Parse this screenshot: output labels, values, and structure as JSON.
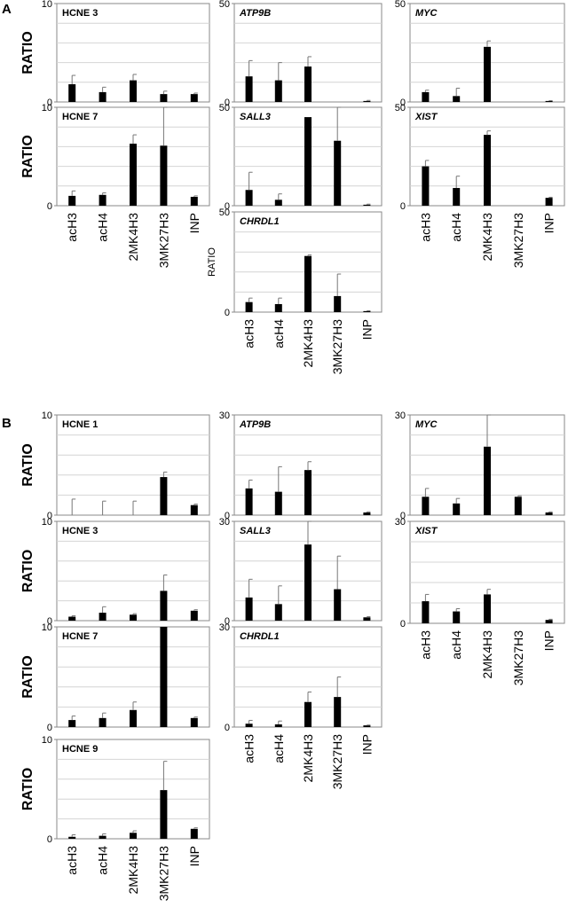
{
  "figure": {
    "panel_labels": [
      "A",
      "B"
    ],
    "y_axis_label": "RATIO",
    "category_labels": [
      "acH3",
      "acH4",
      "2MK4H3",
      "3MK27H3",
      "INP"
    ]
  },
  "chart_data": [
    {
      "id": "A-HCNE3",
      "type": "bar",
      "title": "HCNE 3",
      "title_italic": false,
      "ylabel": "RATIO",
      "ylim": [
        0,
        10
      ],
      "yticks": [
        0,
        10
      ],
      "categories": [
        "acH3",
        "acH4",
        "2MK4H3",
        "3MK27H3",
        "INP"
      ],
      "values": [
        1.8,
        1.0,
        2.2,
        0.8,
        0.8
      ],
      "errors": [
        0.9,
        0.5,
        0.6,
        0.3,
        0.1
      ],
      "grid": true
    },
    {
      "id": "A-ATP9B",
      "type": "bar",
      "title": "ATP9B",
      "title_italic": true,
      "ylabel": "",
      "ylim": [
        0,
        50
      ],
      "yticks": [
        0,
        50
      ],
      "categories": [
        "acH3",
        "acH4",
        "2MK4H3",
        "3MK27H3",
        "INP"
      ],
      "values": [
        13,
        11,
        18,
        0,
        0.5
      ],
      "errors": [
        8,
        9,
        5,
        0,
        0.3
      ],
      "grid": true
    },
    {
      "id": "A-MYC",
      "type": "bar",
      "title": "MYC",
      "title_italic": true,
      "ylabel": "",
      "ylim": [
        0,
        50
      ],
      "yticks": [
        0,
        50
      ],
      "categories": [
        "acH3",
        "acH4",
        "2MK4H3",
        "3MK27H3",
        "INP"
      ],
      "values": [
        5,
        3,
        28,
        0,
        0.5
      ],
      "errors": [
        1,
        4,
        3,
        0,
        0.2
      ],
      "grid": true
    },
    {
      "id": "A-HCNE7",
      "type": "bar",
      "title": "HCNE 7",
      "title_italic": false,
      "ylabel": "RATIO",
      "ylim": [
        0,
        10
      ],
      "yticks": [
        0,
        10
      ],
      "categories": [
        "acH3",
        "acH4",
        "2MK4H3",
        "3MK27H3",
        "INP"
      ],
      "values": [
        1.0,
        1.1,
        6.3,
        6.1,
        0.9
      ],
      "errors": [
        0.5,
        0.2,
        0.9,
        3.9,
        0.1
      ],
      "grid": true
    },
    {
      "id": "A-SALL3",
      "type": "bar",
      "title": "SALL3",
      "title_italic": true,
      "ylabel": "",
      "ylim": [
        0,
        50
      ],
      "yticks": [
        0,
        50
      ],
      "categories": [
        "acH3",
        "acH4",
        "2MK4H3",
        "3MK27H3",
        "INP"
      ],
      "values": [
        8,
        3,
        45,
        33,
        0.5
      ],
      "errors": [
        9,
        3,
        0,
        17,
        0.3
      ],
      "grid": true
    },
    {
      "id": "A-XIST",
      "type": "bar",
      "title": "XIST",
      "title_italic": true,
      "ylabel": "",
      "ylim": [
        0,
        50
      ],
      "yticks": [
        0,
        50
      ],
      "categories": [
        "acH3",
        "acH4",
        "2MK4H3",
        "3MK27H3",
        "INP"
      ],
      "values": [
        20,
        9,
        36,
        0,
        4
      ],
      "errors": [
        3,
        6,
        2,
        0,
        0.3
      ],
      "grid": true
    },
    {
      "id": "A-CHRDL1",
      "type": "bar",
      "title": "CHRDL1",
      "title_italic": true,
      "ylabel": "RATIO",
      "ylim": [
        0,
        50
      ],
      "yticks": [
        0,
        50
      ],
      "categories": [
        "acH3",
        "acH4",
        "2MK4H3",
        "3MK27H3",
        "INP"
      ],
      "values": [
        5,
        4,
        28,
        8,
        0.5
      ],
      "errors": [
        2,
        3,
        0.5,
        11,
        0.2
      ],
      "grid": true
    },
    {
      "id": "B-HCNE1",
      "type": "bar",
      "title": "HCNE 1",
      "title_italic": false,
      "ylabel": "RATIO",
      "ylim": [
        0,
        10
      ],
      "yticks": [
        0,
        10
      ],
      "categories": [
        "acH3",
        "acH4",
        "2MK4H3",
        "3MK27H3",
        "INP"
      ],
      "values": [
        0,
        0,
        0,
        3.8,
        1.0
      ],
      "errors": [
        1.6,
        1.4,
        1.4,
        0.5,
        0.1
      ],
      "grid": true
    },
    {
      "id": "B-ATP9B",
      "type": "bar",
      "title": "ATP9B",
      "title_italic": true,
      "ylabel": "",
      "ylim": [
        0,
        30
      ],
      "yticks": [
        0,
        30
      ],
      "categories": [
        "acH3",
        "acH4",
        "2MK4H3",
        "3MK27H3",
        "INP"
      ],
      "values": [
        8,
        7,
        13.5,
        0,
        0.8
      ],
      "errors": [
        2.5,
        7.5,
        2.5,
        0,
        0.2
      ],
      "grid": true
    },
    {
      "id": "B-MYC",
      "type": "bar",
      "title": "MYC",
      "title_italic": true,
      "ylabel": "",
      "ylim": [
        0,
        30
      ],
      "yticks": [
        0,
        30
      ],
      "categories": [
        "acH3",
        "acH4",
        "2MK4H3",
        "3MK27H3",
        "INP"
      ],
      "values": [
        5.5,
        3.5,
        20.5,
        5.5,
        0.8
      ],
      "errors": [
        2.5,
        1.5,
        9.5,
        0.3,
        0.2
      ],
      "grid": true
    },
    {
      "id": "B-HCNE3",
      "type": "bar",
      "title": "HCNE 3",
      "title_italic": false,
      "ylabel": "RATIO",
      "ylim": [
        0,
        10
      ],
      "yticks": [
        0,
        10
      ],
      "categories": [
        "acH3",
        "acH4",
        "2MK4H3",
        "3MK27H3",
        "INP"
      ],
      "values": [
        0.4,
        0.8,
        0.6,
        3.0,
        1.0
      ],
      "errors": [
        0.1,
        0.6,
        0.1,
        1.6,
        0.1
      ],
      "grid": true
    },
    {
      "id": "B-SALL3",
      "type": "bar",
      "title": "SALL3",
      "title_italic": true,
      "ylabel": "",
      "ylim": [
        0,
        30
      ],
      "yticks": [
        0,
        30
      ],
      "categories": [
        "acH3",
        "acH4",
        "2MK4H3",
        "3MK27H3",
        "INP"
      ],
      "values": [
        7,
        5,
        23,
        9.5,
        1
      ],
      "errors": [
        5.5,
        5.5,
        7,
        10,
        0.2
      ],
      "grid": true
    },
    {
      "id": "B-XIST",
      "type": "bar",
      "title": "XIST",
      "title_italic": true,
      "ylabel": "",
      "ylim": [
        0,
        30
      ],
      "yticks": [
        0,
        30
      ],
      "categories": [
        "acH3",
        "acH4",
        "2MK4H3",
        "3MK27H3",
        "INP"
      ],
      "values": [
        6.5,
        3.5,
        8.5,
        0,
        1
      ],
      "errors": [
        2,
        0.8,
        1.5,
        0,
        0.2
      ],
      "grid": true
    },
    {
      "id": "B-HCNE7",
      "type": "bar",
      "title": "HCNE 7",
      "title_italic": false,
      "ylabel": "RATIO",
      "ylim": [
        0,
        10
      ],
      "yticks": [
        0,
        10
      ],
      "categories": [
        "acH3",
        "acH4",
        "2MK4H3",
        "3MK27H3",
        "INP"
      ],
      "values": [
        0.7,
        0.9,
        1.7,
        10,
        0.9
      ],
      "errors": [
        0.4,
        0.5,
        0.8,
        0,
        0.1
      ],
      "grid": true
    },
    {
      "id": "B-CHRDL1",
      "type": "bar",
      "title": "CHRDL1",
      "title_italic": true,
      "ylabel": "",
      "ylim": [
        0,
        30
      ],
      "yticks": [
        0,
        30
      ],
      "categories": [
        "acH3",
        "acH4",
        "2MK4H3",
        "3MK27H3",
        "INP"
      ],
      "values": [
        1,
        0.8,
        7.5,
        9,
        0.5
      ],
      "errors": [
        1,
        1,
        3,
        6,
        0.1
      ],
      "grid": true
    },
    {
      "id": "B-HCNE9",
      "type": "bar",
      "title": "HCNE 9",
      "title_italic": false,
      "ylabel": "RATIO",
      "ylim": [
        0,
        10
      ],
      "yticks": [
        0,
        10
      ],
      "categories": [
        "acH3",
        "acH4",
        "2MK4H3",
        "3MK27H3",
        "INP"
      ],
      "values": [
        0.2,
        0.3,
        0.6,
        4.9,
        1.0
      ],
      "errors": [
        0.2,
        0.2,
        0.2,
        2.9,
        0.1
      ],
      "grid": true
    }
  ]
}
